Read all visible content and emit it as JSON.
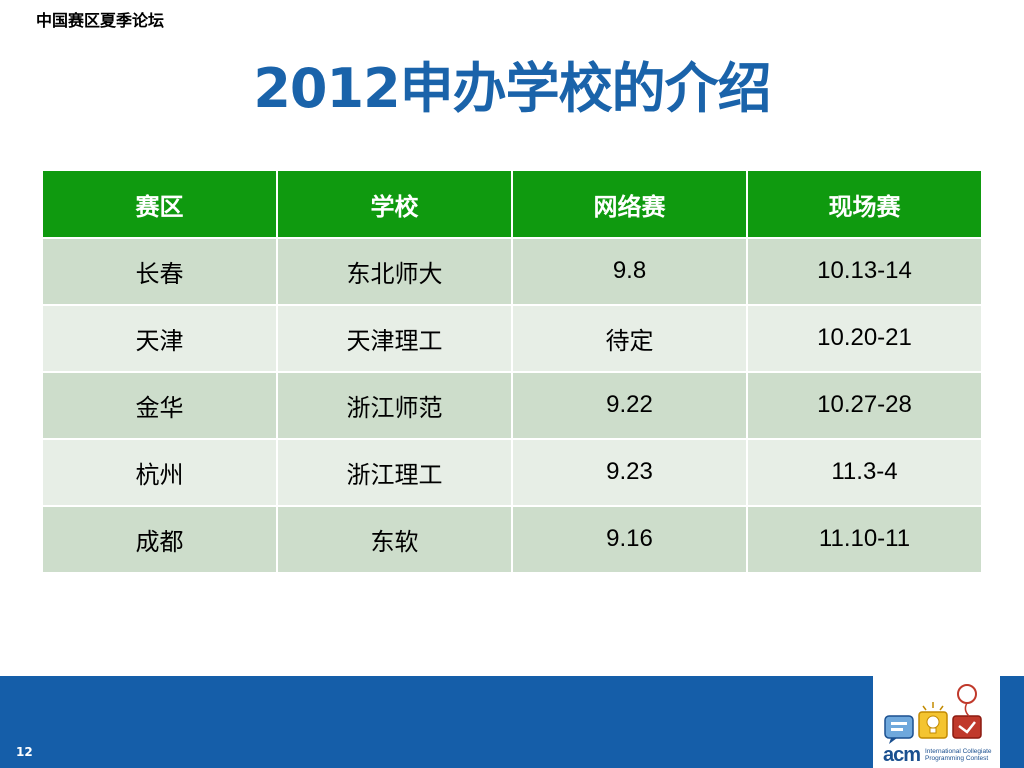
{
  "header": {
    "forum_name": "中国赛区夏季论坛"
  },
  "slide": {
    "title": "2012申办学校的介绍",
    "page_number": "12"
  },
  "table": {
    "columns": [
      "赛区",
      "学校",
      "网络赛",
      "现场赛"
    ],
    "rows": [
      {
        "region": "长春",
        "school": "东北师大",
        "online": "9.8",
        "onsite": "10.13-14"
      },
      {
        "region": "天津",
        "school": "天津理工",
        "online": "待定",
        "onsite": "10.20-21"
      },
      {
        "region": "金华",
        "school": "浙江师范",
        "online": "9.22",
        "onsite": "10.27-28"
      },
      {
        "region": "杭州",
        "school": "浙江理工",
        "online": "9.23",
        "onsite": "11.3-4"
      },
      {
        "region": "成都",
        "school": "东软",
        "online": "9.16",
        "onsite": "11.10-11"
      }
    ]
  },
  "logo": {
    "name": "acm",
    "subtitle_line1": "International Collegiate",
    "subtitle_line2": "Programming Contest"
  },
  "colors": {
    "title": "#1a63aa",
    "header_row": "#0f9a0f",
    "row_odd": "#cdddcb",
    "row_even": "#e7eee6",
    "footer": "#155ea9"
  }
}
